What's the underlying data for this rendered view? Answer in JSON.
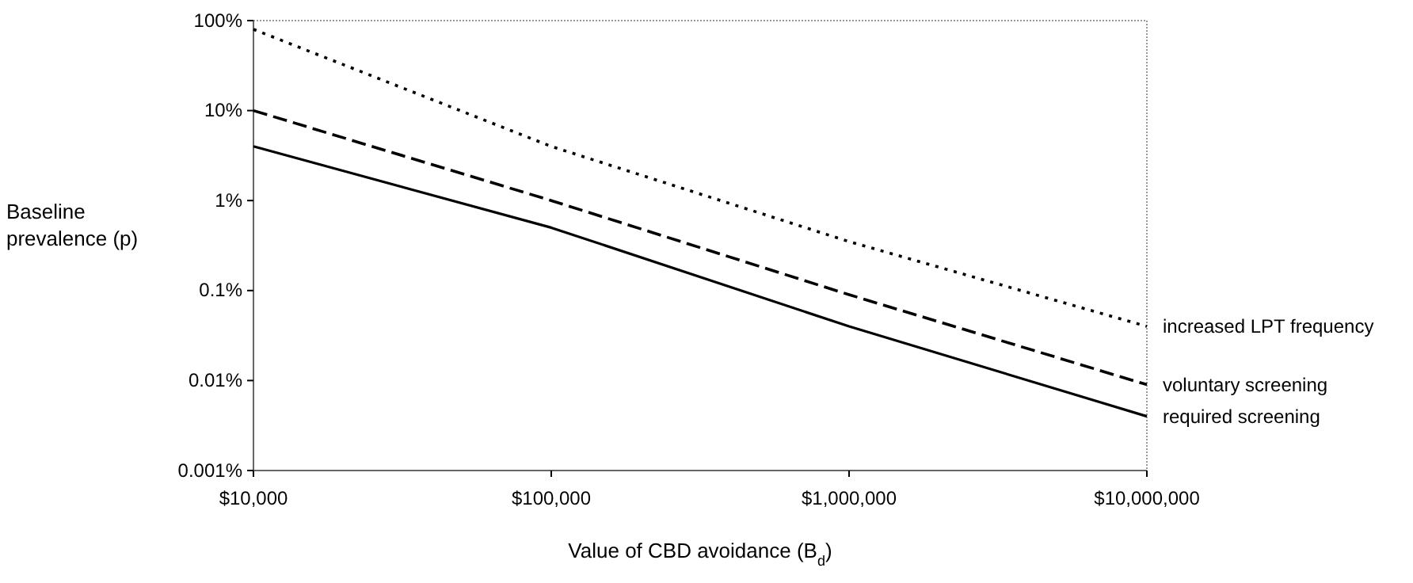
{
  "chart_data": {
    "type": "line",
    "xlabel": "Value of CBD avoidance (B$_{d}$)",
    "ylabel": "Baseline prevalence (p)",
    "log": "xy",
    "grid": false,
    "legend": false,
    "marker": "none",
    "x": [
      10000,
      100000,
      1000000,
      10000000
    ],
    "xlim": [
      10000,
      10000000
    ],
    "xticks": [
      {
        "value": 10000,
        "label": "$10,000"
      },
      {
        "value": 100000,
        "label": "$100,000"
      },
      {
        "value": 1000000,
        "label": "$1,000,000"
      },
      {
        "value": 10000000,
        "label": "$10,000,000"
      }
    ],
    "ylim": [
      0.001,
      100
    ],
    "yticks": [
      {
        "value": 0.001,
        "label": "0.001%"
      },
      {
        "value": 0.01,
        "label": "0.01%"
      },
      {
        "value": 0.1,
        "label": "0.1%"
      },
      {
        "value": 1,
        "label": "1%"
      },
      {
        "value": 10,
        "label": "10%"
      },
      {
        "value": 100,
        "label": "100%"
      }
    ],
    "series": [
      {
        "name": "increased LPT frequency",
        "color": "#000000",
        "line_style": "dotted",
        "values": [
          80,
          4,
          0.35,
          0.04
        ]
      },
      {
        "name": "voluntary screening",
        "color": "#000000",
        "line_style": "dashed",
        "values": [
          10,
          1,
          0.09,
          0.009
        ]
      },
      {
        "name": "required screening",
        "color": "#000000",
        "line_style": "solid",
        "values": [
          4,
          0.5,
          0.04,
          0.004
        ]
      }
    ]
  }
}
